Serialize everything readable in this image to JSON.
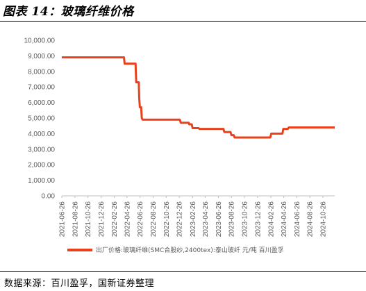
{
  "header": {
    "title": "图表 14：玻璃纤维价格"
  },
  "footer": {
    "source": "数据来源：百川盈孚，国新证券整理"
  },
  "colors": {
    "line": "#E8411B",
    "axis": "#BFBFBF",
    "text": "#595959"
  },
  "chart_data": {
    "type": "line",
    "title": "",
    "ylim": [
      0,
      10000
    ],
    "yticks": [
      "0.00",
      "1,000.00",
      "2,000.00",
      "3,000.00",
      "4,000.00",
      "5,000.00",
      "6,000.00",
      "7,000.00",
      "8,000.00",
      "9,000.00",
      "10,000.00"
    ],
    "xticks": [
      "2021-06-26",
      "2021-08-26",
      "2021-10-26",
      "2021-12-26",
      "2022-02-26",
      "2022-04-26",
      "2022-06-26",
      "2022-08-26",
      "2022-10-26",
      "2022-12-26",
      "2023-02-26",
      "2023-04-26",
      "2023-06-26",
      "2023-08-26",
      "2023-10-26",
      "2023-12-26",
      "2024-02-26",
      "2024-04-26",
      "2024-06-26",
      "2024-08-26",
      "2024-10-26"
    ],
    "xrange": [
      "2021-06-26",
      "2024-12-20"
    ],
    "grid": false,
    "legend_position": "bottom",
    "series": [
      {
        "name": "出厂价格:玻璃纤维(SMC合股纱,2400tex):泰山玻纤 元/吨 百川盈孚",
        "points": [
          [
            "2021-06-26",
            8900
          ],
          [
            "2022-04-12",
            8900
          ],
          [
            "2022-04-15",
            8500
          ],
          [
            "2022-06-05",
            8500
          ],
          [
            "2022-06-08",
            7300
          ],
          [
            "2022-06-20",
            7300
          ],
          [
            "2022-06-22",
            6300
          ],
          [
            "2022-06-25",
            5700
          ],
          [
            "2022-07-01",
            5700
          ],
          [
            "2022-07-04",
            5000
          ],
          [
            "2022-07-08",
            4900
          ],
          [
            "2022-12-28",
            4900
          ],
          [
            "2023-01-02",
            4700
          ],
          [
            "2023-02-08",
            4700
          ],
          [
            "2023-02-10",
            4600
          ],
          [
            "2023-02-22",
            4600
          ],
          [
            "2023-02-26",
            4350
          ],
          [
            "2023-03-26",
            4350
          ],
          [
            "2023-03-30",
            4300
          ],
          [
            "2023-07-20",
            4300
          ],
          [
            "2023-07-24",
            4100
          ],
          [
            "2023-08-22",
            4100
          ],
          [
            "2023-08-26",
            3900
          ],
          [
            "2023-09-06",
            3900
          ],
          [
            "2023-09-10",
            3750
          ],
          [
            "2024-02-23",
            3750
          ],
          [
            "2024-02-28",
            4000
          ],
          [
            "2024-04-20",
            4000
          ],
          [
            "2024-04-24",
            4300
          ],
          [
            "2024-05-15",
            4300
          ],
          [
            "2024-05-20",
            4400
          ],
          [
            "2024-12-20",
            4400
          ]
        ]
      }
    ]
  }
}
